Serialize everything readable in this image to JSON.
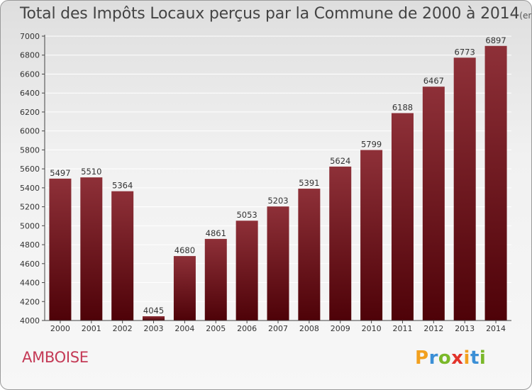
{
  "title": "Total des Impôts Locaux perçus par la Commune de 2000 à 2014",
  "title_unit": "(en milliers d'€)",
  "commune": "AMBOISE",
  "logo": {
    "letters": [
      "P",
      "r",
      "o",
      "x",
      "i",
      "t",
      "i"
    ],
    "colors": [
      "#f2a01e",
      "#3b8fd6",
      "#7ab829",
      "#e2332a",
      "#f2a01e",
      "#3b8fd6",
      "#7ab829"
    ]
  },
  "chart_data": {
    "type": "bar",
    "title": "Total des Impôts Locaux perçus par la Commune de 2000 à 2014",
    "categories": [
      "2000",
      "2001",
      "2002",
      "2003",
      "2004",
      "2005",
      "2006",
      "2007",
      "2008",
      "2009",
      "2010",
      "2011",
      "2012",
      "2013",
      "2014"
    ],
    "values": [
      5497,
      5510,
      5364,
      4045,
      4680,
      4861,
      5053,
      5203,
      5391,
      5624,
      5799,
      6188,
      6467,
      6773,
      6897
    ],
    "ylim": [
      4000,
      7000
    ],
    "yticks": [
      4000,
      4200,
      4400,
      4600,
      4800,
      5000,
      5200,
      5400,
      5600,
      5800,
      6000,
      6200,
      6400,
      6600,
      6800,
      7000
    ],
    "grid": true,
    "bar_color": "#7a1a22"
  }
}
